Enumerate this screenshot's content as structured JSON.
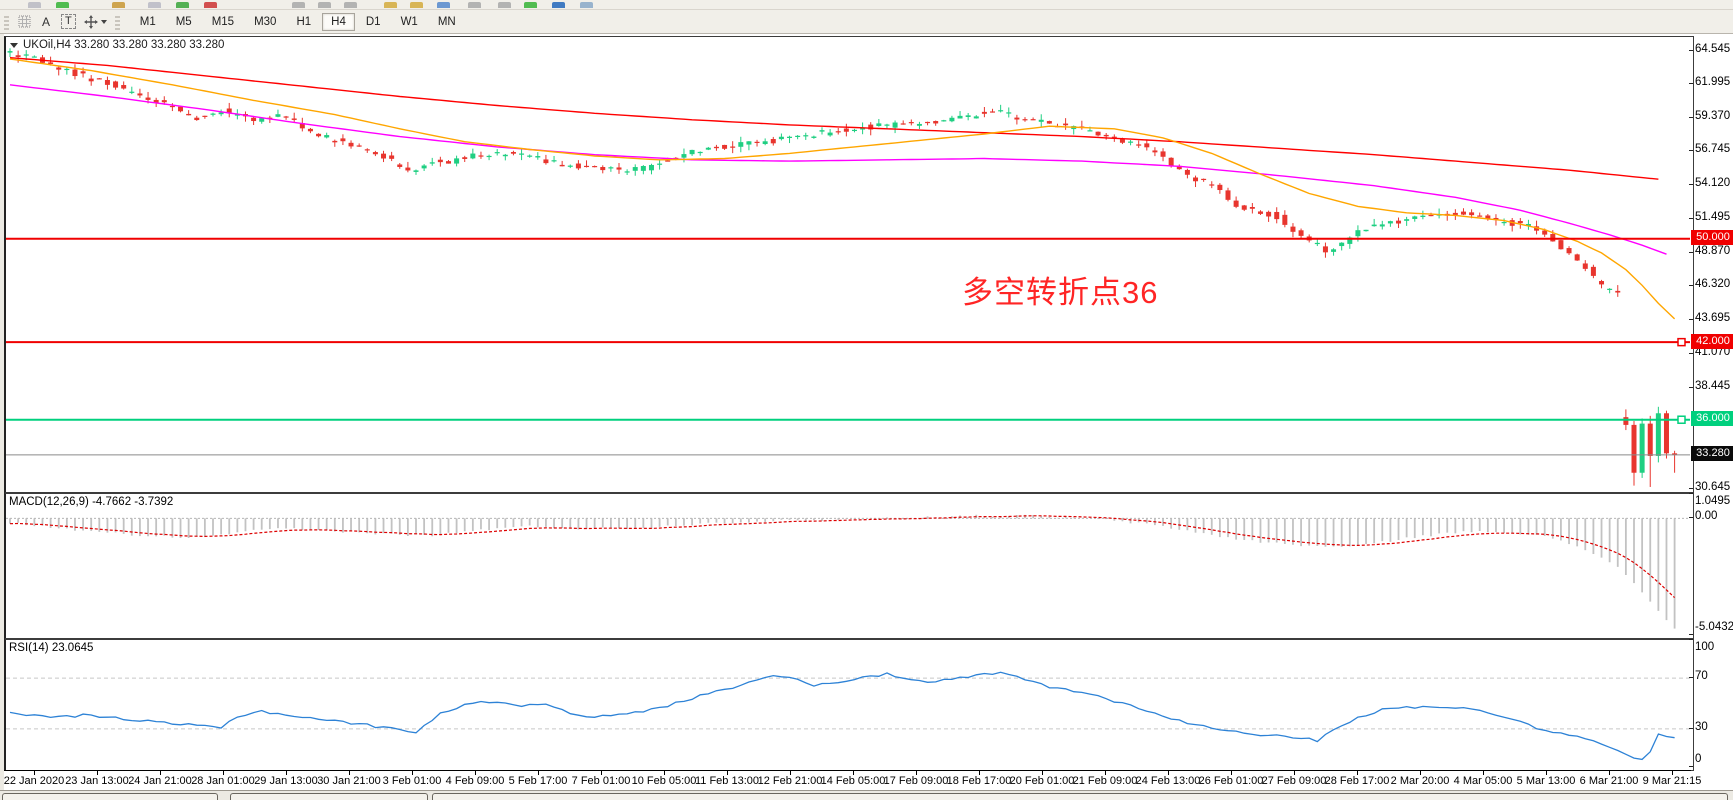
{
  "toolbar": {
    "a_label": "A",
    "t_label": "T",
    "timeframes": [
      {
        "label": "M1",
        "active": false
      },
      {
        "label": "M5",
        "active": false
      },
      {
        "label": "M15",
        "active": false
      },
      {
        "label": "M30",
        "active": false
      },
      {
        "label": "H1",
        "active": false
      },
      {
        "label": "H4",
        "active": true
      },
      {
        "label": "D1",
        "active": false
      },
      {
        "label": "W1",
        "active": false
      },
      {
        "label": "MN",
        "active": false
      }
    ]
  },
  "chart": {
    "title": "UKOil,H4  33.280 33.280 33.280 33.280",
    "annotation": {
      "text": "多空转折点36",
      "color": "#ff2525"
    },
    "price_ticks": [
      {
        "label": "64.545",
        "price": 64.545
      },
      {
        "label": "61.995",
        "price": 61.995
      },
      {
        "label": "59.370",
        "price": 59.37
      },
      {
        "label": "56.745",
        "price": 56.745
      },
      {
        "label": "54.120",
        "price": 54.12
      },
      {
        "label": "51.495",
        "price": 51.495
      },
      {
        "label": "48.870",
        "price": 48.87
      },
      {
        "label": "46.320",
        "price": 46.32
      },
      {
        "label": "43.695",
        "price": 43.695
      },
      {
        "label": "41.070",
        "price": 41.07
      },
      {
        "label": "38.445",
        "price": 38.445
      },
      {
        "label": "30.645",
        "price": 30.645
      }
    ],
    "levels": [
      {
        "value": "50.000",
        "price": 50.0,
        "color": "#f00000",
        "label_bg": "#f00000",
        "width": 2,
        "handle": false
      },
      {
        "value": "42.000",
        "price": 42.0,
        "color": "#f00000",
        "label_bg": "#f00000",
        "width": 2,
        "handle": true
      },
      {
        "value": "36.000",
        "price": 36.0,
        "color": "#00d07e",
        "label_bg": "#00d07e",
        "width": 2,
        "handle": true
      },
      {
        "value": "33.280",
        "price": 33.28,
        "color": "#8a8a8a",
        "label_bg": "#0a0a0a",
        "width": 1,
        "handle": false
      }
    ]
  },
  "macd": {
    "label": "MACD(12,26,9) -4.7662 -3.7392",
    "ticks": [
      {
        "label": "1.0495",
        "value": 1.0495
      },
      {
        "label": "0.00",
        "value": 0.0
      },
      {
        "label": "-5.0432",
        "value": -5.0432
      }
    ]
  },
  "rsi": {
    "label": "RSI(14) 23.0645",
    "ticks": [
      {
        "label": "100",
        "value": 100
      },
      {
        "label": "70",
        "value": 70
      },
      {
        "label": "30",
        "value": 30
      },
      {
        "label": "0",
        "value": 0
      }
    ]
  },
  "time_axis": {
    "labels": [
      "22 Jan 2020",
      "23 Jan 13:00",
      "24 Jan 21:00",
      "28 Jan 01:00",
      "29 Jan 13:00",
      "30 Jan 21:00",
      "3 Feb 01:00",
      "4 Feb 09:00",
      "5 Feb 17:00",
      "7 Feb 01:00",
      "10 Feb 05:00",
      "11 Feb 13:00",
      "12 Feb 21:00",
      "14 Feb 05:00",
      "17 Feb 09:00",
      "18 Feb 17:00",
      "20 Feb 01:00",
      "21 Feb 09:00",
      "24 Feb 13:00",
      "26 Feb 01:00",
      "27 Feb 09:00",
      "28 Feb 17:00",
      "2 Mar 20:00",
      "4 Mar 05:00",
      "5 Mar 13:00",
      "6 Mar 21:00",
      "9 Mar 21:15"
    ]
  },
  "chart_data": {
    "type": "candlestick",
    "symbol": "UKOil",
    "timeframe": "H4",
    "title": "UKOil,H4 33.280 33.280 33.280 33.280",
    "last_price": 33.28,
    "price_axis_range": [
      30.4,
      65.6
    ],
    "price_top": 65.6,
    "price_scale": 12.93,
    "bar_count": 206,
    "normal_count": 198,
    "colors": {
      "up": "#1fcf82",
      "down": "#e8352e",
      "ma_red": "#ff0000",
      "ma_magenta": "#ff00ff",
      "ma_orange": "#ffa600",
      "macd_bar": "#c2c2c2",
      "macd_signal": "#dd0000",
      "rsi_line": "#2d82d6",
      "level_red": "#f00000",
      "level_green": "#00d07e",
      "price_line": "#8a8a8a"
    },
    "price_path": [
      [
        0,
        64.4
      ],
      [
        4,
        63.9
      ],
      [
        8,
        62.9
      ],
      [
        12,
        62.2
      ],
      [
        16,
        61.3
      ],
      [
        20,
        60.4
      ],
      [
        24,
        59.3
      ],
      [
        27,
        59.9
      ],
      [
        31,
        59.2
      ],
      [
        34,
        59.6
      ],
      [
        39,
        58.0
      ],
      [
        43,
        57.1
      ],
      [
        47,
        56.3
      ],
      [
        50,
        55.2
      ],
      [
        53,
        55.9
      ],
      [
        55,
        56.0
      ],
      [
        59,
        56.5
      ],
      [
        63,
        56.7
      ],
      [
        66,
        56.2
      ],
      [
        69,
        55.7
      ],
      [
        71,
        55.5
      ],
      [
        75,
        55.3
      ],
      [
        79,
        55.5
      ],
      [
        83,
        56.3
      ],
      [
        86,
        56.9
      ],
      [
        90,
        57.2
      ],
      [
        94,
        57.5
      ],
      [
        98,
        57.9
      ],
      [
        102,
        58.3
      ],
      [
        106,
        58.6
      ],
      [
        110,
        58.8
      ],
      [
        114,
        59.0
      ],
      [
        118,
        59.4
      ],
      [
        122,
        59.9
      ],
      [
        126,
        59.2
      ],
      [
        130,
        58.8
      ],
      [
        133,
        58.5
      ],
      [
        137,
        57.8
      ],
      [
        141,
        57.0
      ],
      [
        144,
        55.6
      ],
      [
        147,
        54.6
      ],
      [
        149,
        54.0
      ],
      [
        152,
        52.6
      ],
      [
        155,
        52.0
      ],
      [
        157,
        51.7
      ],
      [
        159,
        50.6
      ],
      [
        161,
        49.8
      ],
      [
        163,
        49.1
      ],
      [
        165,
        49.6
      ],
      [
        167,
        50.6
      ],
      [
        170,
        51.2
      ],
      [
        172,
        51.4
      ],
      [
        174,
        51.8
      ],
      [
        176,
        51.6
      ],
      [
        178,
        51.9
      ],
      [
        180,
        51.9
      ],
      [
        182,
        51.6
      ],
      [
        184,
        51.4
      ],
      [
        186,
        51.2
      ],
      [
        188,
        50.9
      ],
      [
        190,
        50.2
      ],
      [
        192,
        49.3
      ],
      [
        194,
        48.3
      ],
      [
        196,
        46.9
      ],
      [
        197,
        46.3
      ],
      [
        198,
        45.9
      ]
    ],
    "final_candles": [
      {
        "o": 36.2,
        "h": 36.8,
        "l": 35.2,
        "c": 35.6
      },
      {
        "o": 35.6,
        "h": 35.9,
        "l": 30.9,
        "c": 31.9
      },
      {
        "o": 31.9,
        "h": 36.1,
        "l": 31.5,
        "c": 35.7
      },
      {
        "o": 35.7,
        "h": 36.3,
        "l": 30.8,
        "c": 33.2
      },
      {
        "o": 33.2,
        "h": 37.0,
        "l": 32.7,
        "c": 36.5
      },
      {
        "o": 36.5,
        "h": 36.7,
        "l": 33.0,
        "c": 33.4
      },
      {
        "o": 33.4,
        "h": 33.6,
        "l": 31.9,
        "c": 33.28
      }
    ],
    "red_ma": [
      [
        0,
        64.0
      ],
      [
        12,
        63.4
      ],
      [
        24,
        62.6
      ],
      [
        36,
        61.8
      ],
      [
        48,
        61.0
      ],
      [
        60,
        60.3
      ],
      [
        72,
        59.7
      ],
      [
        84,
        59.2
      ],
      [
        96,
        58.8
      ],
      [
        108,
        58.5
      ],
      [
        120,
        58.2
      ],
      [
        132,
        57.9
      ],
      [
        144,
        57.5
      ],
      [
        156,
        57.0
      ],
      [
        168,
        56.5
      ],
      [
        180,
        55.9
      ],
      [
        192,
        55.3
      ],
      [
        203,
        54.6
      ]
    ],
    "magenta_ma": [
      [
        0,
        61.9
      ],
      [
        12,
        61.0
      ],
      [
        24,
        60.0
      ],
      [
        36,
        58.9
      ],
      [
        48,
        57.9
      ],
      [
        60,
        57.1
      ],
      [
        72,
        56.5
      ],
      [
        84,
        56.1
      ],
      [
        96,
        56.0
      ],
      [
        108,
        56.1
      ],
      [
        120,
        56.2
      ],
      [
        132,
        56.0
      ],
      [
        144,
        55.6
      ],
      [
        156,
        54.9
      ],
      [
        168,
        54.1
      ],
      [
        178,
        53.2
      ],
      [
        186,
        52.2
      ],
      [
        192,
        51.2
      ],
      [
        197,
        50.3
      ],
      [
        201,
        49.5
      ],
      [
        204,
        48.8
      ]
    ],
    "orange_ma": [
      [
        0,
        63.9
      ],
      [
        10,
        63.0
      ],
      [
        20,
        61.9
      ],
      [
        30,
        60.7
      ],
      [
        40,
        59.6
      ],
      [
        48,
        58.5
      ],
      [
        56,
        57.5
      ],
      [
        64,
        56.9
      ],
      [
        72,
        56.4
      ],
      [
        80,
        56.1
      ],
      [
        88,
        56.2
      ],
      [
        96,
        56.6
      ],
      [
        104,
        57.1
      ],
      [
        112,
        57.6
      ],
      [
        120,
        58.1
      ],
      [
        128,
        58.7
      ],
      [
        136,
        58.5
      ],
      [
        142,
        57.8
      ],
      [
        148,
        56.6
      ],
      [
        154,
        55.0
      ],
      [
        160,
        53.5
      ],
      [
        166,
        52.5
      ],
      [
        172,
        52.0
      ],
      [
        178,
        51.8
      ],
      [
        184,
        51.4
      ],
      [
        189,
        50.7
      ],
      [
        193,
        49.8
      ],
      [
        196,
        48.9
      ],
      [
        199,
        47.6
      ],
      [
        201,
        46.4
      ],
      [
        203,
        45.0
      ],
      [
        205,
        43.8
      ]
    ],
    "macd_range": [
      1.0495,
      -5.0432
    ],
    "macd_values_last": [
      -4.7662,
      -3.7392
    ],
    "macd_path": [
      [
        0,
        -0.2
      ],
      [
        8,
        -0.5
      ],
      [
        16,
        -0.75
      ],
      [
        24,
        -0.85
      ],
      [
        28,
        -0.6
      ],
      [
        34,
        -0.45
      ],
      [
        40,
        -0.55
      ],
      [
        47,
        -0.7
      ],
      [
        52,
        -0.75
      ],
      [
        58,
        -0.5
      ],
      [
        64,
        -0.35
      ],
      [
        71,
        -0.45
      ],
      [
        79,
        -0.4
      ],
      [
        86,
        -0.2
      ],
      [
        94,
        -0.12
      ],
      [
        102,
        -0.05
      ],
      [
        110,
        0.02
      ],
      [
        118,
        0.1
      ],
      [
        124,
        0.12
      ],
      [
        130,
        0.05
      ],
      [
        136,
        -0.1
      ],
      [
        141,
        -0.3
      ],
      [
        146,
        -0.6
      ],
      [
        152,
        -0.95
      ],
      [
        158,
        -1.15
      ],
      [
        164,
        -1.25
      ],
      [
        168,
        -1.1
      ],
      [
        172,
        -0.85
      ],
      [
        177,
        -0.65
      ],
      [
        181,
        -0.55
      ],
      [
        185,
        -0.6
      ],
      [
        189,
        -0.8
      ],
      [
        193,
        -1.2
      ],
      [
        196,
        -1.7
      ],
      [
        198,
        -2.1
      ],
      [
        200,
        -2.8
      ],
      [
        202,
        -3.6
      ],
      [
        204,
        -4.4
      ],
      [
        205,
        -4.766
      ]
    ],
    "rsi_last": 23.0645,
    "rsi_levels": [
      70,
      30
    ],
    "rsi_path": [
      [
        0,
        43
      ],
      [
        5,
        39
      ],
      [
        10,
        41
      ],
      [
        15,
        37
      ],
      [
        20,
        34
      ],
      [
        26,
        31
      ],
      [
        28,
        40
      ],
      [
        31,
        44
      ],
      [
        34,
        41
      ],
      [
        39,
        37
      ],
      [
        44,
        33
      ],
      [
        47,
        30
      ],
      [
        50,
        28
      ],
      [
        53,
        42
      ],
      [
        56,
        49
      ],
      [
        60,
        52
      ],
      [
        63,
        48
      ],
      [
        66,
        50
      ],
      [
        69,
        43
      ],
      [
        72,
        39
      ],
      [
        75,
        41
      ],
      [
        79,
        45
      ],
      [
        83,
        52
      ],
      [
        86,
        58
      ],
      [
        89,
        63
      ],
      [
        92,
        69
      ],
      [
        95,
        72
      ],
      [
        97,
        70
      ],
      [
        99,
        64
      ],
      [
        102,
        67
      ],
      [
        105,
        71
      ],
      [
        108,
        73
      ],
      [
        110,
        70
      ],
      [
        113,
        66
      ],
      [
        116,
        69
      ],
      [
        119,
        72
      ],
      [
        122,
        74
      ],
      [
        125,
        69
      ],
      [
        128,
        63
      ],
      [
        131,
        60
      ],
      [
        134,
        56
      ],
      [
        137,
        50
      ],
      [
        140,
        45
      ],
      [
        143,
        38
      ],
      [
        146,
        33
      ],
      [
        149,
        30
      ],
      [
        152,
        27
      ],
      [
        155,
        25
      ],
      [
        158,
        23
      ],
      [
        161,
        21
      ],
      [
        163,
        30
      ],
      [
        166,
        39
      ],
      [
        169,
        45
      ],
      [
        172,
        47
      ],
      [
        175,
        48
      ],
      [
        178,
        47
      ],
      [
        181,
        44
      ],
      [
        184,
        40
      ],
      [
        186,
        36
      ],
      [
        188,
        31
      ],
      [
        190,
        28
      ],
      [
        192,
        25
      ],
      [
        194,
        22
      ],
      [
        196,
        18
      ],
      [
        198,
        13
      ],
      [
        199,
        10
      ],
      [
        200,
        7
      ],
      [
        201,
        6
      ],
      [
        202,
        12
      ],
      [
        203,
        26
      ],
      [
        204,
        24
      ],
      [
        205,
        23.06
      ]
    ]
  }
}
